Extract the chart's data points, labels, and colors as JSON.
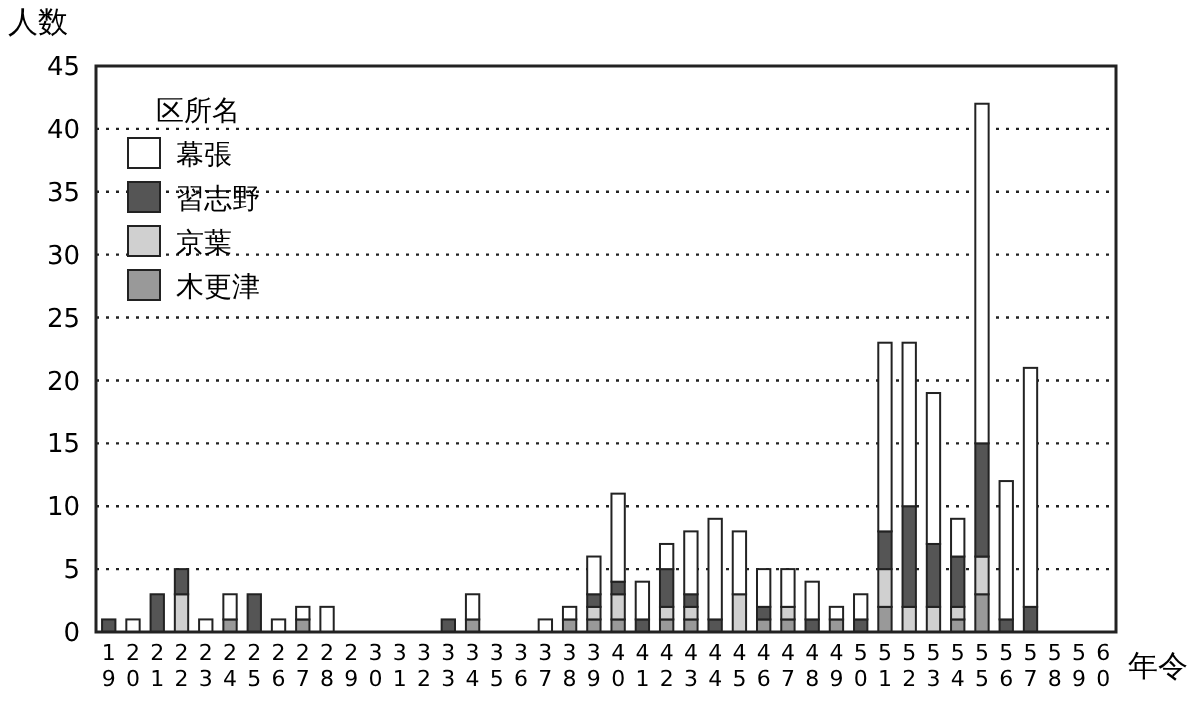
{
  "chart_data": {
    "type": "bar",
    "stacked": true,
    "xlabel": "年令",
    "ylabel": "人数",
    "legend_title": "区所名",
    "legend": "top left",
    "grid": "y",
    "categories": [
      "19",
      "20",
      "21",
      "22",
      "23",
      "24",
      "25",
      "26",
      "27",
      "28",
      "29",
      "30",
      "31",
      "32",
      "33",
      "34",
      "35",
      "36",
      "37",
      "38",
      "39",
      "40",
      "41",
      "42",
      "43",
      "44",
      "45",
      "46",
      "47",
      "48",
      "49",
      "50",
      "51",
      "52",
      "53",
      "54",
      "55",
      "56",
      "57",
      "58",
      "59",
      "60"
    ],
    "ylim": [
      0,
      45
    ],
    "yticks": [
      0,
      5,
      10,
      15,
      20,
      25,
      30,
      35,
      40,
      45
    ],
    "series": [
      {
        "name": "木更津",
        "color": "#999999",
        "values": [
          0,
          0,
          0,
          0,
          0,
          1,
          0,
          0,
          1,
          0,
          0,
          0,
          0,
          0,
          0,
          1,
          0,
          0,
          0,
          1,
          1,
          1,
          0,
          1,
          1,
          0,
          0,
          1,
          1,
          0,
          1,
          0,
          2,
          0,
          0,
          1,
          3,
          0,
          0,
          0,
          0,
          0
        ]
      },
      {
        "name": "京葉",
        "color": "#d0d0d0",
        "values": [
          0,
          0,
          0,
          3,
          0,
          0,
          0,
          0,
          0,
          0,
          0,
          0,
          0,
          0,
          0,
          0,
          0,
          0,
          0,
          0,
          1,
          2,
          0,
          1,
          1,
          0,
          3,
          0,
          1,
          0,
          0,
          0,
          3,
          2,
          2,
          1,
          3,
          0,
          0,
          0,
          0,
          0
        ]
      },
      {
        "name": "習志野",
        "color": "#555555",
        "values": [
          1,
          0,
          3,
          2,
          0,
          0,
          3,
          0,
          0,
          0,
          0,
          0,
          0,
          0,
          1,
          0,
          0,
          0,
          0,
          0,
          1,
          1,
          1,
          3,
          1,
          1,
          0,
          1,
          0,
          1,
          0,
          1,
          3,
          8,
          5,
          4,
          9,
          1,
          2,
          0,
          0,
          0
        ]
      },
      {
        "name": "幕張",
        "color": "#ffffff",
        "values": [
          0,
          1,
          0,
          0,
          1,
          2,
          0,
          1,
          1,
          2,
          0,
          0,
          0,
          0,
          0,
          2,
          0,
          0,
          1,
          1,
          3,
          7,
          3,
          2,
          5,
          8,
          5,
          3,
          3,
          3,
          1,
          2,
          15,
          13,
          12,
          3,
          27,
          11,
          19,
          0,
          0,
          0
        ]
      }
    ]
  }
}
